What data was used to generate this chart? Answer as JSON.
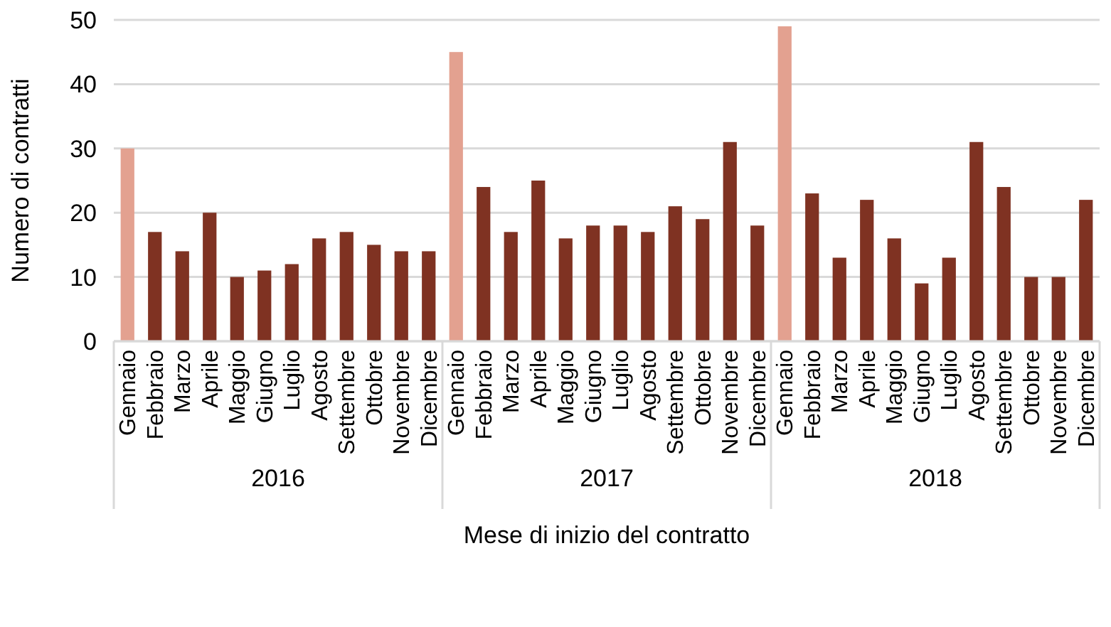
{
  "chart_data": {
    "type": "bar",
    "xlabel": "Mese di inizio del contratto",
    "ylabel": "Numero di contratti",
    "categories": [
      "Gennaio",
      "Febbraio",
      "Marzo",
      "Aprile",
      "Maggio",
      "Giugno",
      "Luglio",
      "Agosto",
      "Settembre",
      "Ottobre",
      "Novembre",
      "Dicembre",
      "Gennaio",
      "Febbraio",
      "Marzo",
      "Aprile",
      "Maggio",
      "Giugno",
      "Luglio",
      "Agosto",
      "Settembre",
      "Ottobre",
      "Novembre",
      "Dicembre",
      "Gennaio",
      "Febbraio",
      "Marzo",
      "Aprile",
      "Maggio",
      "Giugno",
      "Luglio",
      "Agosto",
      "Settembre",
      "Ottobre",
      "Novembre",
      "Dicembre"
    ],
    "values": [
      30,
      17,
      14,
      20,
      10,
      11,
      12,
      16,
      17,
      15,
      14,
      14,
      45,
      24,
      17,
      25,
      16,
      18,
      18,
      17,
      21,
      19,
      31,
      18,
      49,
      23,
      13,
      22,
      16,
      9,
      13,
      31,
      24,
      10,
      10,
      22
    ],
    "colors": [
      "#e3a190",
      "#7f3222",
      "#7f3222",
      "#7f3222",
      "#7f3222",
      "#7f3222",
      "#7f3222",
      "#7f3222",
      "#7f3222",
      "#7f3222",
      "#7f3222",
      "#7f3222",
      "#e3a190",
      "#7f3222",
      "#7f3222",
      "#7f3222",
      "#7f3222",
      "#7f3222",
      "#7f3222",
      "#7f3222",
      "#7f3222",
      "#7f3222",
      "#7f3222",
      "#7f3222",
      "#e3a190",
      "#7f3222",
      "#7f3222",
      "#7f3222",
      "#7f3222",
      "#7f3222",
      "#7f3222",
      "#7f3222",
      "#7f3222",
      "#7f3222",
      "#7f3222",
      "#7f3222"
    ],
    "annotations": [
      "2016",
      "2017",
      "2018"
    ],
    "ylim": [
      0,
      50
    ],
    "yticks": [
      0,
      10,
      20,
      30,
      40,
      50
    ],
    "grid": "y"
  }
}
